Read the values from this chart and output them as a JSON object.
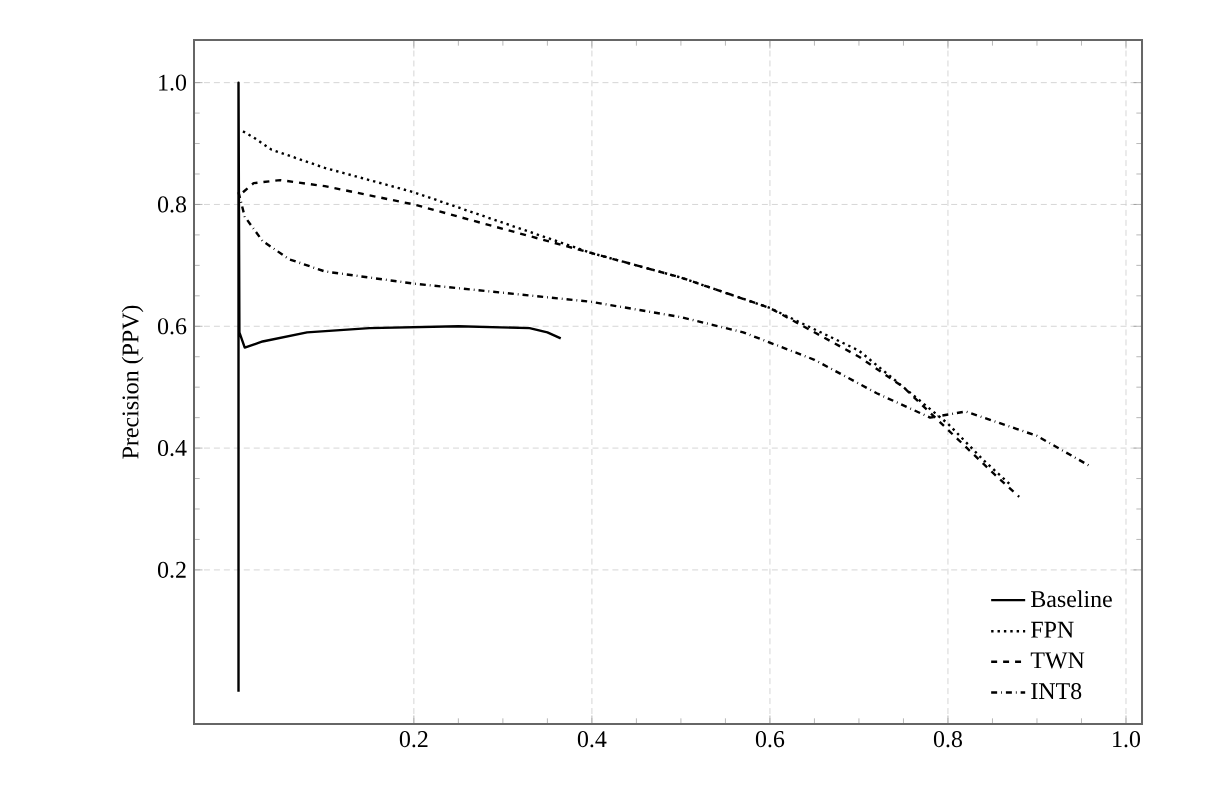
{
  "chart_data": {
    "type": "line",
    "ylabel": "Precision (PPV)",
    "xlim": [
      -0.047,
      1.018
    ],
    "ylim": [
      -0.053,
      1.07
    ],
    "xticks": [
      0.2,
      0.4,
      0.6,
      0.8,
      {
        "value": 1.0,
        "label": "1.0"
      }
    ],
    "yticks": [
      0.2,
      0.4,
      0.6,
      0.8,
      {
        "value": 1.0,
        "label": "1.0"
      }
    ],
    "grid": true,
    "legend": "bottom right",
    "marker": "none",
    "series": [
      {
        "name": "Baseline",
        "color": "#000000",
        "line_style": "solid",
        "x": [
          0.003,
          0.003,
          0.004,
          0.01,
          0.03,
          0.08,
          0.15,
          0.25,
          0.33,
          0.35,
          0.365
        ],
        "values": [
          0.0,
          1.0,
          0.59,
          0.565,
          0.575,
          0.59,
          0.597,
          0.6,
          0.597,
          0.59,
          0.58
        ]
      },
      {
        "name": "FPN",
        "color": "#000000",
        "line_style": "dotted",
        "x": [
          0.008,
          0.02,
          0.04,
          0.1,
          0.2,
          0.3,
          0.4,
          0.5,
          0.6,
          0.7,
          0.75,
          0.8,
          0.84,
          0.87
        ],
        "values": [
          0.92,
          0.91,
          0.89,
          0.86,
          0.82,
          0.77,
          0.72,
          0.68,
          0.63,
          0.56,
          0.5,
          0.44,
          0.38,
          0.34
        ]
      },
      {
        "name": "TWN",
        "color": "#000000",
        "line_style": "dashed",
        "x": [
          0.008,
          0.02,
          0.05,
          0.1,
          0.2,
          0.3,
          0.4,
          0.5,
          0.6,
          0.7,
          0.75,
          0.8,
          0.85,
          0.88
        ],
        "values": [
          0.82,
          0.835,
          0.84,
          0.83,
          0.8,
          0.76,
          0.72,
          0.68,
          0.63,
          0.55,
          0.5,
          0.43,
          0.36,
          0.32
        ]
      },
      {
        "name": "INT8",
        "color": "#000000",
        "line_style": "dashdot",
        "x": [
          0.003,
          0.01,
          0.03,
          0.06,
          0.1,
          0.2,
          0.3,
          0.4,
          0.5,
          0.57,
          0.65,
          0.72,
          0.78,
          0.82,
          0.9,
          0.96
        ],
        "values": [
          0.82,
          0.78,
          0.74,
          0.71,
          0.69,
          0.67,
          0.655,
          0.64,
          0.615,
          0.59,
          0.545,
          0.49,
          0.45,
          0.46,
          0.42,
          0.37
        ]
      }
    ]
  }
}
